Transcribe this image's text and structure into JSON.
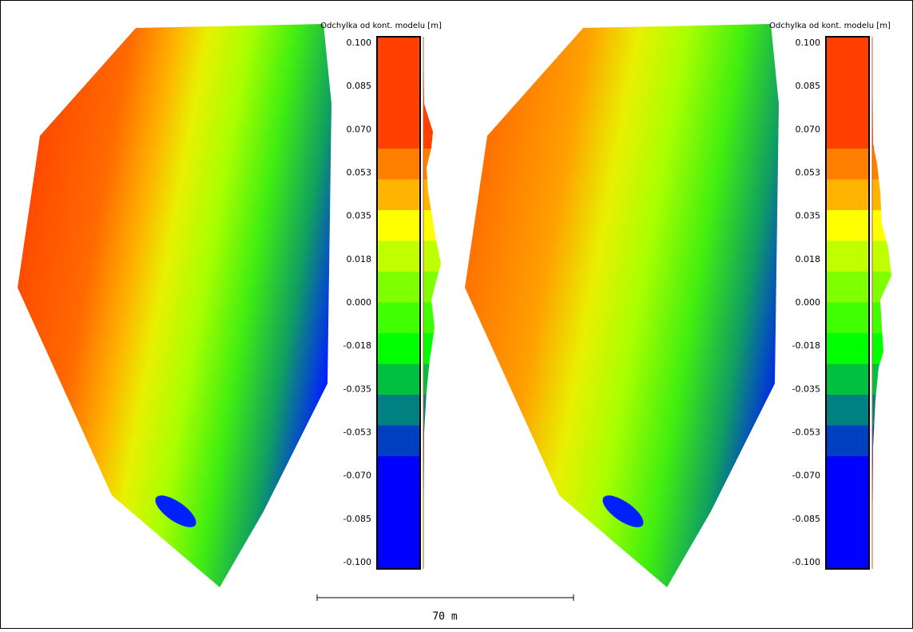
{
  "panels": [
    {
      "scale_title": "Odchylka od kont. modelu [m]",
      "ticks": [
        "0.100",
        "0.085",
        "0.070",
        "0.053",
        "0.035",
        "0.018",
        "0.000",
        "-0.018",
        "-0.035",
        "-0.053",
        "-0.070",
        "-0.085",
        "-0.100"
      ]
    },
    {
      "scale_title": "Odchylka od kont. modelu [m]",
      "ticks": [
        "0.100",
        "0.085",
        "0.070",
        "0.053",
        "0.035",
        "0.018",
        "0.000",
        "-0.018",
        "-0.035",
        "-0.053",
        "-0.070",
        "-0.085",
        "-0.100"
      ]
    }
  ],
  "band_colors": [
    "#ff4000",
    "#ff8000",
    "#ffb400",
    "#ffff00",
    "#c0ff00",
    "#80ff00",
    "#40ff00",
    "#00ff00",
    "#00c040",
    "#008080",
    "#0040c0",
    "#0000ff"
  ],
  "scale_bar": "70 m"
}
